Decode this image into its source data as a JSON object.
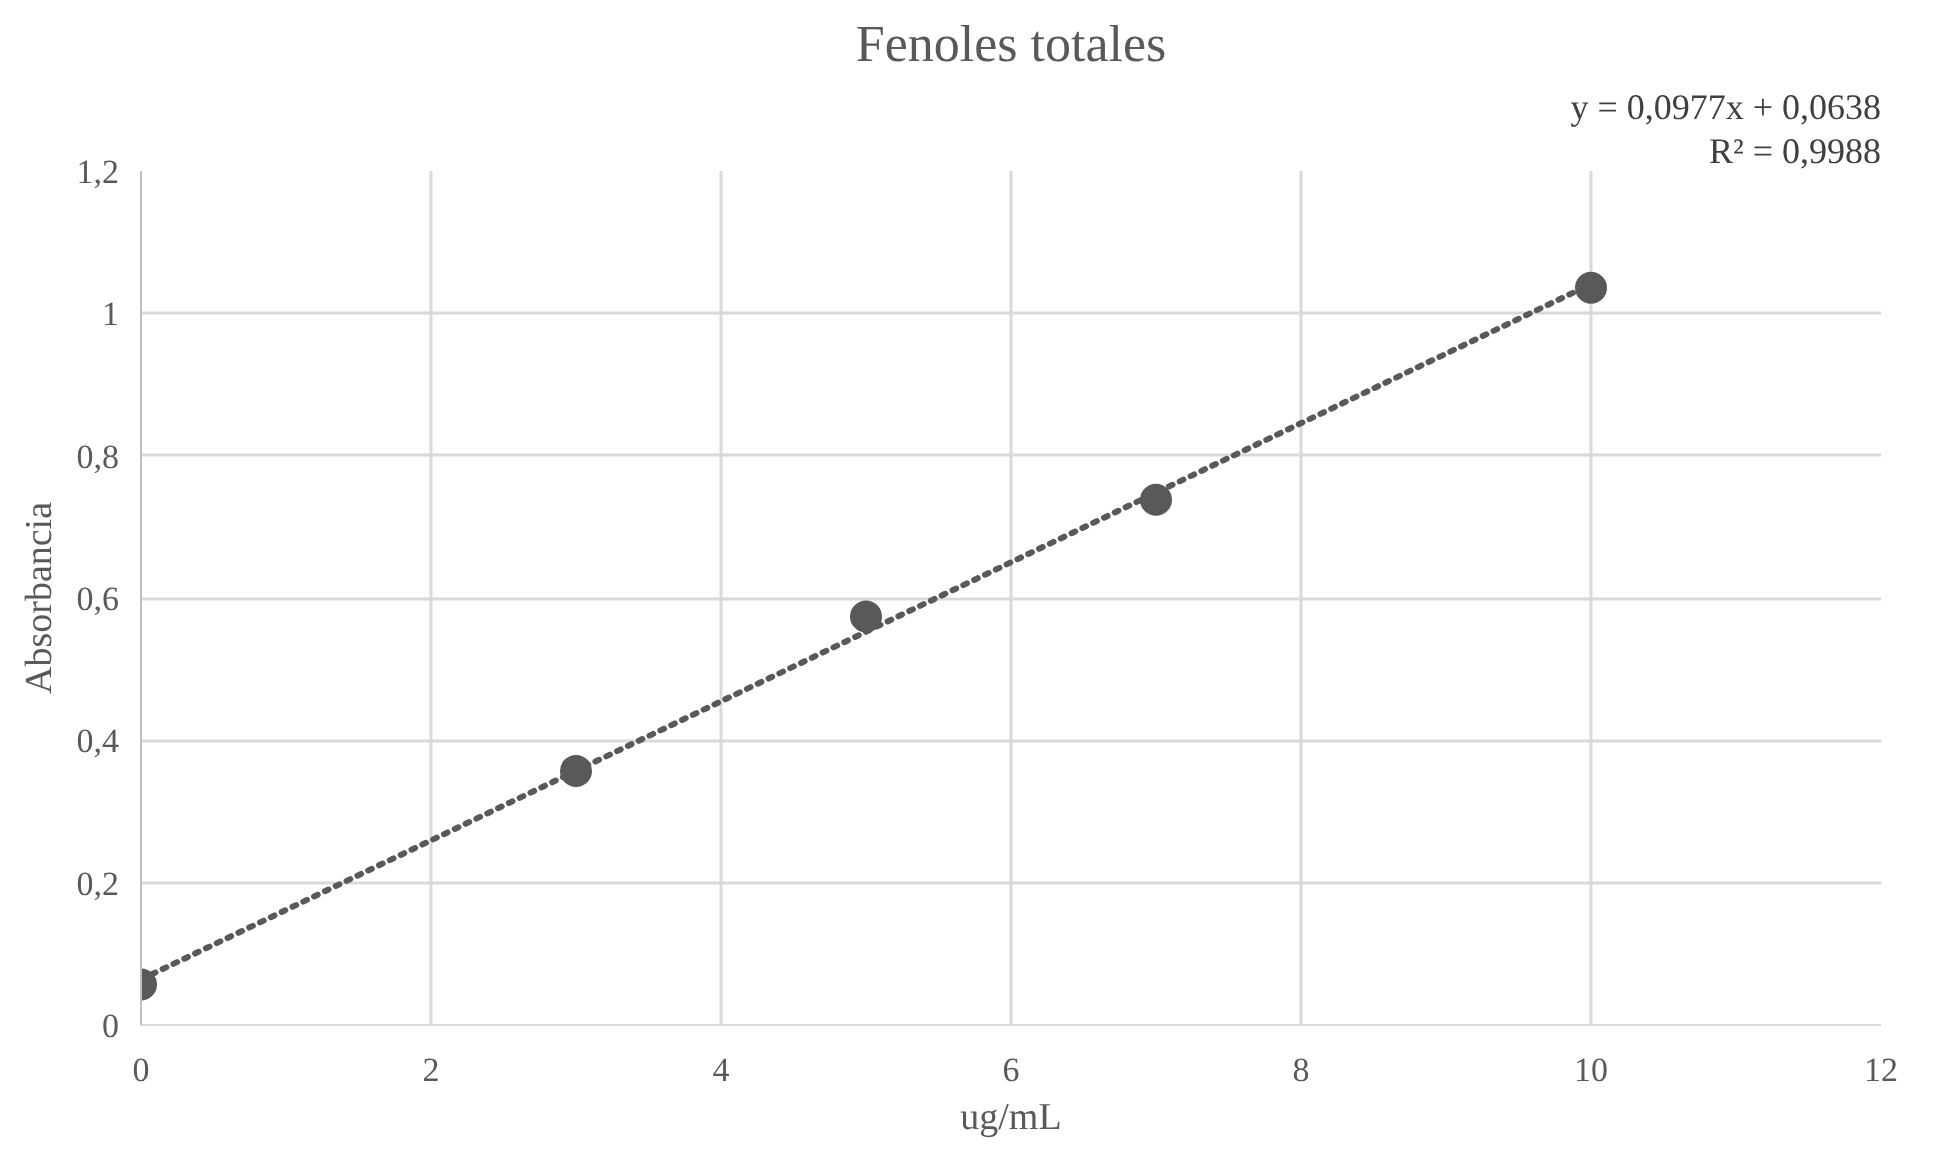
{
  "chart_data": {
    "type": "scatter",
    "title": "Fenoles totales",
    "xlabel": "ug/mL",
    "ylabel": "Absorbancia",
    "series": [
      {
        "color": "#595959",
        "marker": "circle",
        "x": [
          0,
          3,
          5,
          7,
          10
        ],
        "values": [
          0.057,
          0.357,
          0.574,
          0.738,
          1.036
        ]
      },
      {
        "type": "line",
        "color": "#595959",
        "line_style": "dotted",
        "x": [
          0,
          10
        ],
        "values": [
          0.064,
          1.041
        ]
      }
    ],
    "xlim": [
      0,
      12
    ],
    "xticks": [
      0,
      2,
      4,
      6,
      8,
      10,
      12
    ],
    "ylim": [
      0,
      1.2
    ],
    "yticks": [
      0,
      {
        "value": 0.2,
        "label": "0,2"
      },
      {
        "value": 0.4,
        "label": "0,4"
      },
      {
        "value": 0.6,
        "label": "0,6"
      },
      {
        "value": 0.8,
        "label": "0,8"
      },
      1,
      {
        "value": 1.2,
        "label": "1,2"
      }
    ],
    "grid": true,
    "annotations": [
      "y = 0,0977x + 0,0638",
      "R² = 0,9988"
    ]
  }
}
